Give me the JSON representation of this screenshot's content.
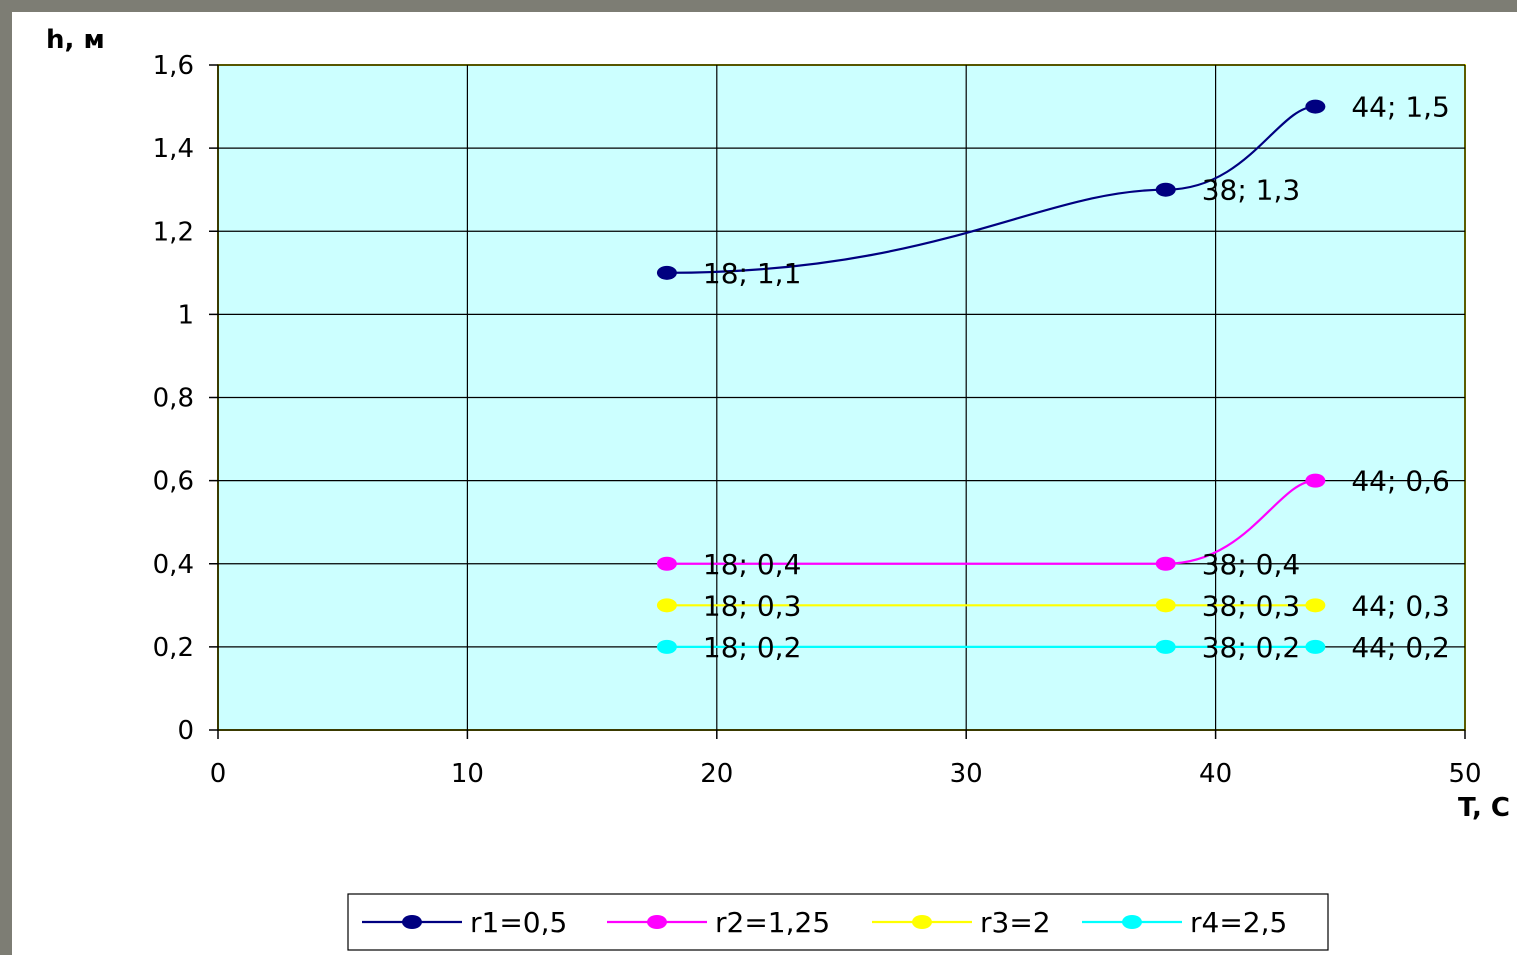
{
  "chart_data": {
    "type": "line",
    "xlabel": "T, C",
    "ylabel": "h, м",
    "xlim": [
      0,
      50
    ],
    "ylim": [
      0,
      1.6
    ],
    "x_ticks": [
      "0",
      "10",
      "20",
      "30",
      "40",
      "50"
    ],
    "y_ticks": [
      "0",
      "0,2",
      "0,4",
      "0,6",
      "0,8",
      "1",
      "1,2",
      "1,4",
      "1,6"
    ],
    "grid": true,
    "plot_background": "#ccffff",
    "legend_position": "bottom",
    "series": [
      {
        "name": "r1=0,5",
        "color": "#000080",
        "x": [
          18,
          38,
          44
        ],
        "y": [
          1.1,
          1.3,
          1.5
        ],
        "labels": [
          "18; 1,1",
          "38; 1,3",
          "44; 1,5"
        ]
      },
      {
        "name": "r2=1,25",
        "color": "#ff00ff",
        "x": [
          18,
          38,
          44
        ],
        "y": [
          0.4,
          0.4,
          0.6
        ],
        "labels": [
          "18; 0,4",
          "38; 0,4",
          "44; 0,6"
        ]
      },
      {
        "name": "r3=2",
        "color": "#ffff00",
        "x": [
          18,
          38,
          44
        ],
        "y": [
          0.3,
          0.3,
          0.3
        ],
        "labels": [
          "18; 0,3",
          "38; 0,3",
          "44; 0,3"
        ]
      },
      {
        "name": "r4=2,5",
        "color": "#00ffff",
        "x": [
          18,
          38,
          44
        ],
        "y": [
          0.2,
          0.2,
          0.2
        ],
        "labels": [
          "18; 0,2",
          "38; 0,2",
          "44; 0,2"
        ]
      }
    ]
  }
}
